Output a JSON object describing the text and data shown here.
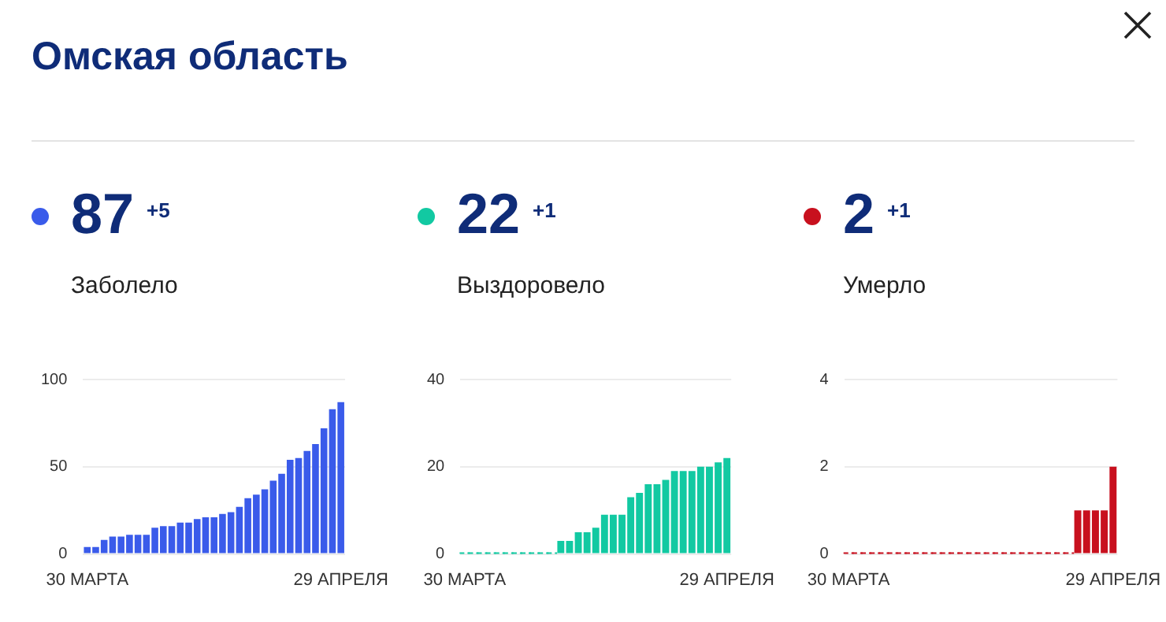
{
  "chart_data": [
    {
      "type": "other",
      "title": "Омская область"
    },
    {
      "type": "bar",
      "title": "Заболело",
      "annotations": [
        "87",
        "+5"
      ],
      "color": "#3a5bea",
      "categories": [
        "30 МАРТА",
        null,
        null,
        null,
        null,
        null,
        null,
        null,
        null,
        null,
        null,
        null,
        null,
        null,
        null,
        null,
        null,
        null,
        null,
        null,
        null,
        null,
        null,
        null,
        null,
        null,
        null,
        null,
        null,
        null,
        "29 АПРЕЛЯ"
      ],
      "values": [
        4,
        4,
        8,
        10,
        10,
        11,
        11,
        11,
        15,
        16,
        16,
        18,
        18,
        20,
        21,
        21,
        23,
        24,
        27,
        32,
        34,
        37,
        42,
        46,
        54,
        55,
        59,
        63,
        72,
        83,
        87
      ],
      "ylim": [
        0,
        100
      ],
      "yticks": [
        0,
        50,
        100
      ],
      "grid": "y"
    },
    {
      "type": "bar",
      "title": "Выздоровело",
      "annotations": [
        "22",
        "+1"
      ],
      "color": "#12c9a2",
      "categories": [
        "30 МАРТА",
        null,
        null,
        null,
        null,
        null,
        null,
        null,
        null,
        null,
        null,
        null,
        null,
        null,
        null,
        null,
        null,
        null,
        null,
        null,
        null,
        null,
        null,
        null,
        null,
        null,
        null,
        null,
        null,
        null,
        "29 АПРЕЛЯ"
      ],
      "values": [
        0,
        0,
        0,
        0,
        0,
        0,
        0,
        0,
        0,
        0,
        0,
        3,
        3,
        5,
        5,
        6,
        9,
        9,
        9,
        13,
        14,
        16,
        16,
        17,
        19,
        19,
        19,
        20,
        20,
        21,
        22
      ],
      "ylim": [
        0,
        40
      ],
      "yticks": [
        0,
        20,
        40
      ],
      "grid": "y"
    },
    {
      "type": "bar",
      "title": "Умерло",
      "annotations": [
        "2",
        "+1"
      ],
      "color": "#c8101e",
      "categories": [
        "30 МАРТА",
        null,
        null,
        null,
        null,
        null,
        null,
        null,
        null,
        null,
        null,
        null,
        null,
        null,
        null,
        null,
        null,
        null,
        null,
        null,
        null,
        null,
        null,
        null,
        null,
        null,
        null,
        null,
        null,
        null,
        "29 АПРЕЛЯ"
      ],
      "values": [
        0,
        0,
        0,
        0,
        0,
        0,
        0,
        0,
        0,
        0,
        0,
        0,
        0,
        0,
        0,
        0,
        0,
        0,
        0,
        0,
        0,
        0,
        0,
        0,
        0,
        0,
        1,
        1,
        1,
        1,
        2
      ],
      "ylim": [
        0,
        4
      ],
      "yticks": [
        0,
        2,
        4
      ],
      "grid": "y"
    }
  ]
}
